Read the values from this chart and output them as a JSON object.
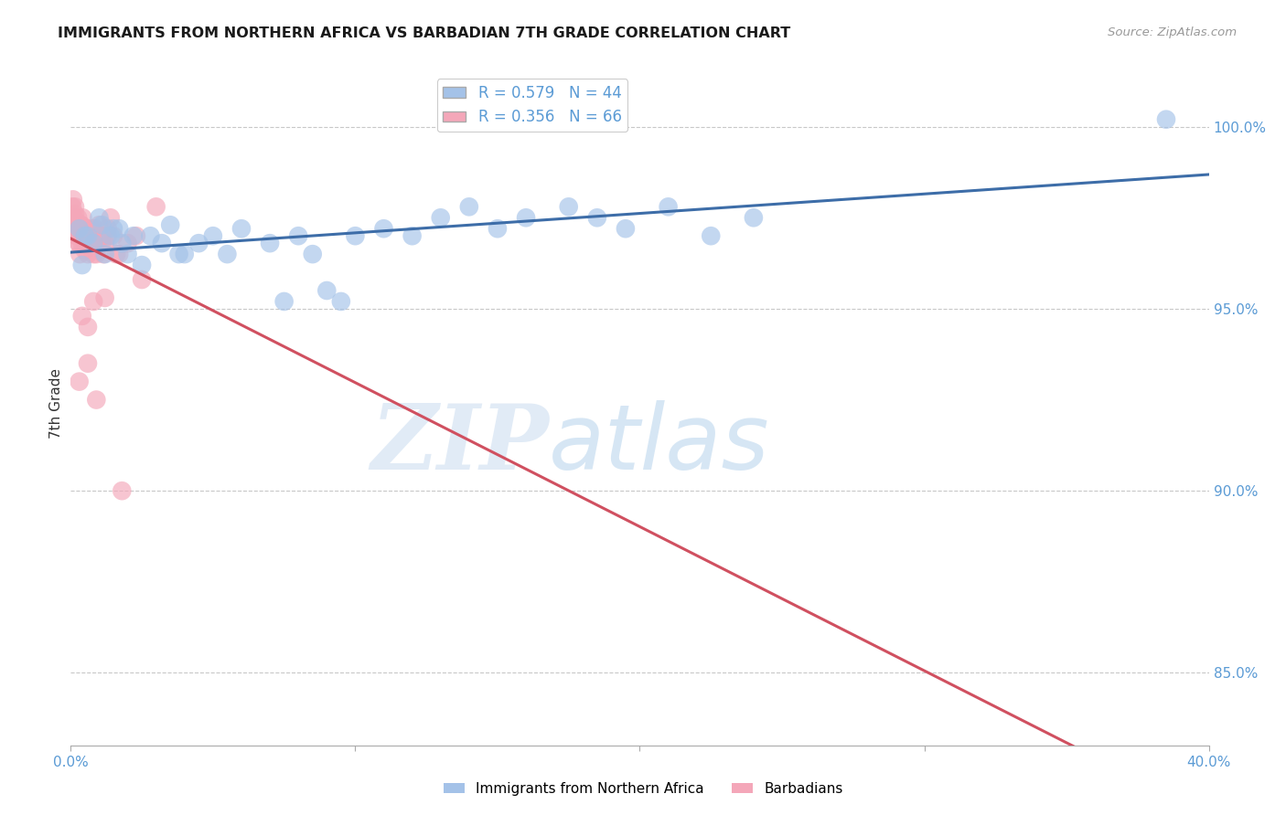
{
  "title": "IMMIGRANTS FROM NORTHERN AFRICA VS BARBADIAN 7TH GRADE CORRELATION CHART",
  "source": "Source: ZipAtlas.com",
  "ylabel": "7th Grade",
  "y_ticks": [
    85.0,
    90.0,
    95.0,
    100.0
  ],
  "y_tick_labels": [
    "85.0%",
    "90.0%",
    "95.0%",
    "100.0%"
  ],
  "xlim": [
    0.0,
    40.0
  ],
  "ylim": [
    83.0,
    101.8
  ],
  "legend1_R": "0.579",
  "legend1_N": "44",
  "legend2_R": "0.356",
  "legend2_N": "66",
  "blue_color": "#a4c2e8",
  "pink_color": "#f4a7b9",
  "blue_line_color": "#3d6da8",
  "pink_line_color": "#d05060",
  "watermark_zip": "ZIP",
  "watermark_atlas": "atlas",
  "blue_scatter_x": [
    0.3,
    0.5,
    0.8,
    1.0,
    1.2,
    1.5,
    1.8,
    2.0,
    2.2,
    2.5,
    2.8,
    3.2,
    3.5,
    4.0,
    4.5,
    5.0,
    5.5,
    6.0,
    7.0,
    7.5,
    8.0,
    8.5,
    9.0,
    9.5,
    10.0,
    11.0,
    12.0,
    13.0,
    14.0,
    15.0,
    16.0,
    17.5,
    18.5,
    19.5,
    21.0,
    22.5,
    24.0,
    0.4,
    0.6,
    1.1,
    1.4,
    1.7,
    3.8,
    38.5
  ],
  "blue_scatter_y": [
    97.2,
    97.0,
    96.8,
    97.5,
    96.5,
    97.2,
    96.8,
    96.5,
    97.0,
    96.2,
    97.0,
    96.8,
    97.3,
    96.5,
    96.8,
    97.0,
    96.5,
    97.2,
    96.8,
    95.2,
    97.0,
    96.5,
    95.5,
    95.2,
    97.0,
    97.2,
    97.0,
    97.5,
    97.8,
    97.2,
    97.5,
    97.8,
    97.5,
    97.2,
    97.8,
    97.0,
    97.5,
    96.2,
    97.0,
    97.3,
    97.0,
    97.2,
    96.5,
    100.2
  ],
  "pink_scatter_x": [
    0.05,
    0.08,
    0.1,
    0.12,
    0.15,
    0.18,
    0.2,
    0.22,
    0.25,
    0.28,
    0.3,
    0.32,
    0.35,
    0.38,
    0.4,
    0.42,
    0.45,
    0.48,
    0.5,
    0.52,
    0.55,
    0.6,
    0.65,
    0.7,
    0.75,
    0.8,
    0.85,
    0.9,
    1.0,
    1.1,
    1.2,
    1.3,
    1.5,
    1.7,
    2.0,
    2.3,
    0.15,
    0.25,
    0.35,
    0.45,
    0.55,
    0.65,
    0.75,
    0.85,
    0.95,
    1.05,
    1.15,
    0.2,
    0.3,
    0.5,
    0.7,
    0.9,
    1.1,
    1.3,
    0.4,
    0.6,
    0.8,
    1.2,
    1.6,
    2.5,
    0.3,
    0.6,
    0.9,
    1.4,
    1.8,
    3.0
  ],
  "pink_scatter_y": [
    97.8,
    98.0,
    97.5,
    97.3,
    97.6,
    97.2,
    97.4,
    97.0,
    97.2,
    96.8,
    97.1,
    96.5,
    97.0,
    97.3,
    96.8,
    97.5,
    97.2,
    96.9,
    96.6,
    97.0,
    97.2,
    96.5,
    97.0,
    96.8,
    97.2,
    96.5,
    97.0,
    96.8,
    97.3,
    97.0,
    96.8,
    97.2,
    97.0,
    96.5,
    96.8,
    97.0,
    97.8,
    97.5,
    97.3,
    97.0,
    97.2,
    96.8,
    97.0,
    97.2,
    96.8,
    97.0,
    96.5,
    97.0,
    96.8,
    97.2,
    97.0,
    96.5,
    96.8,
    97.0,
    94.8,
    94.5,
    95.2,
    95.3,
    96.5,
    95.8,
    93.0,
    93.5,
    92.5,
    97.5,
    90.0,
    97.8
  ]
}
